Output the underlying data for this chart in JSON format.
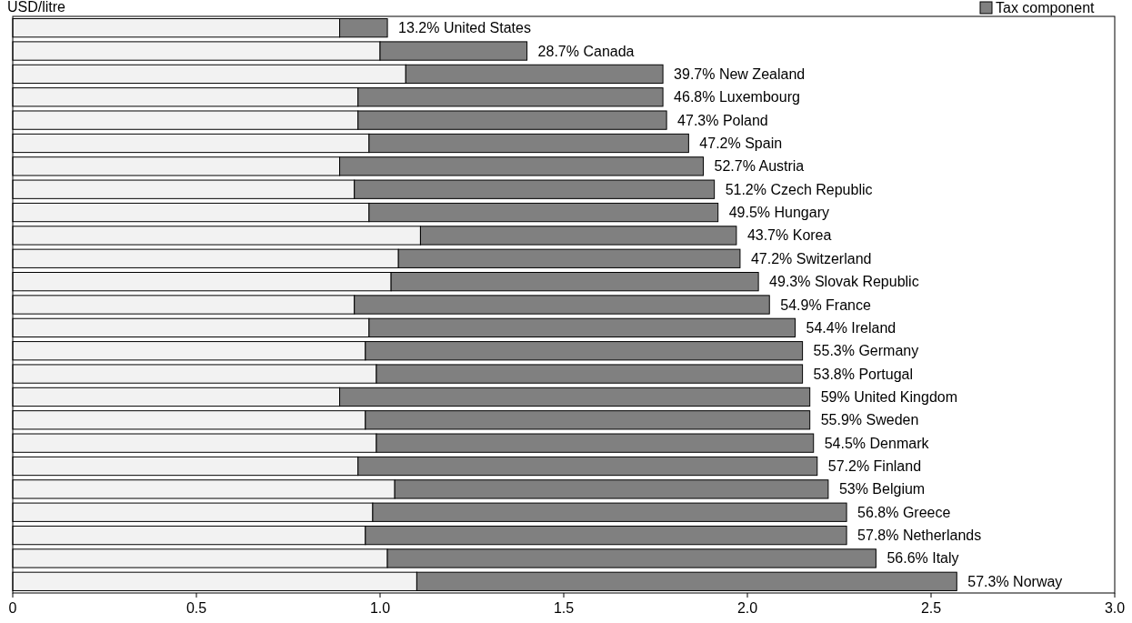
{
  "chart_data": {
    "type": "bar",
    "orientation": "horizontal",
    "stacked": true,
    "xlabel": "USD/litre",
    "categories": [
      "United States",
      "Canada",
      "New Zealand",
      "Luxembourg",
      "Poland",
      "Spain",
      "Austria",
      "Czech Republic",
      "Hungary",
      "Korea",
      "Switzerland",
      "Slovak Republic",
      "France",
      "Ireland",
      "Germany",
      "Portugal",
      "United Kingdom",
      "Sweden",
      "Denmark",
      "Finland",
      "Belgium",
      "Greece",
      "Netherlands",
      "Italy",
      "Norway"
    ],
    "series": [
      {
        "color": "#f2f2f2",
        "values": [
          0.89,
          1.0,
          1.07,
          0.94,
          0.94,
          0.97,
          0.89,
          0.93,
          0.97,
          1.11,
          1.05,
          1.03,
          0.93,
          0.97,
          0.96,
          0.99,
          0.89,
          0.96,
          0.99,
          0.94,
          1.04,
          0.98,
          0.96,
          1.02,
          1.1
        ]
      },
      {
        "name": "Tax component",
        "color": "#808080",
        "values": [
          0.13,
          0.4,
          0.7,
          0.83,
          0.84,
          0.87,
          0.99,
          0.98,
          0.95,
          0.86,
          0.93,
          1.0,
          1.13,
          1.16,
          1.19,
          1.16,
          1.28,
          1.21,
          1.19,
          1.25,
          1.18,
          1.29,
          1.31,
          1.33,
          1.47
        ]
      }
    ],
    "annotations": [
      {
        "text": "13.2%",
        "x": 1.02,
        "y": "United States"
      },
      {
        "text": "28.7%",
        "x": 1.4,
        "y": "Canada"
      },
      {
        "text": "39.7%",
        "x": 1.77,
        "y": "New Zealand"
      },
      {
        "text": "46.8%",
        "x": 1.77,
        "y": "Luxembourg"
      },
      {
        "text": "47.3%",
        "x": 1.78,
        "y": "Poland"
      },
      {
        "text": "47.2%",
        "x": 1.84,
        "y": "Spain"
      },
      {
        "text": "52.7%",
        "x": 1.88,
        "y": "Austria"
      },
      {
        "text": "51.2%",
        "x": 1.91,
        "y": "Czech Republic"
      },
      {
        "text": "49.5%",
        "x": 1.92,
        "y": "Hungary"
      },
      {
        "text": "43.7%",
        "x": 1.97,
        "y": "Korea"
      },
      {
        "text": "47.2%",
        "x": 1.98,
        "y": "Switzerland"
      },
      {
        "text": "49.3%",
        "x": 2.03,
        "y": "Slovak Republic"
      },
      {
        "text": "54.9%",
        "x": 2.06,
        "y": "France"
      },
      {
        "text": "54.4%",
        "x": 2.13,
        "y": "Ireland"
      },
      {
        "text": "55.3%",
        "x": 2.15,
        "y": "Germany"
      },
      {
        "text": "53.8%",
        "x": 2.15,
        "y": "Portugal"
      },
      {
        "text": "59%",
        "x": 2.17,
        "y": "United Kingdom"
      },
      {
        "text": "55.9%",
        "x": 2.17,
        "y": "Sweden"
      },
      {
        "text": "54.5%",
        "x": 2.18,
        "y": "Denmark"
      },
      {
        "text": "57.2%",
        "x": 2.19,
        "y": "Finland"
      },
      {
        "text": "53%",
        "x": 2.22,
        "y": "Belgium"
      },
      {
        "text": "56.8%",
        "x": 2.27,
        "y": "Greece"
      },
      {
        "text": "57.8%",
        "x": 2.27,
        "y": "Netherlands"
      },
      {
        "text": "56.6%",
        "x": 2.35,
        "y": "Italy"
      },
      {
        "text": "57.3%",
        "x": 2.57,
        "y": "Norway"
      }
    ],
    "xlim": [
      0,
      3
    ],
    "xticks": [
      0,
      0.5,
      {
        "value": 1,
        "label": "1.0"
      },
      1.5,
      {
        "value": 2,
        "label": "2.0"
      },
      2.5,
      {
        "value": 3,
        "label": "3.0"
      }
    ],
    "grid": false,
    "legend": "top right"
  }
}
